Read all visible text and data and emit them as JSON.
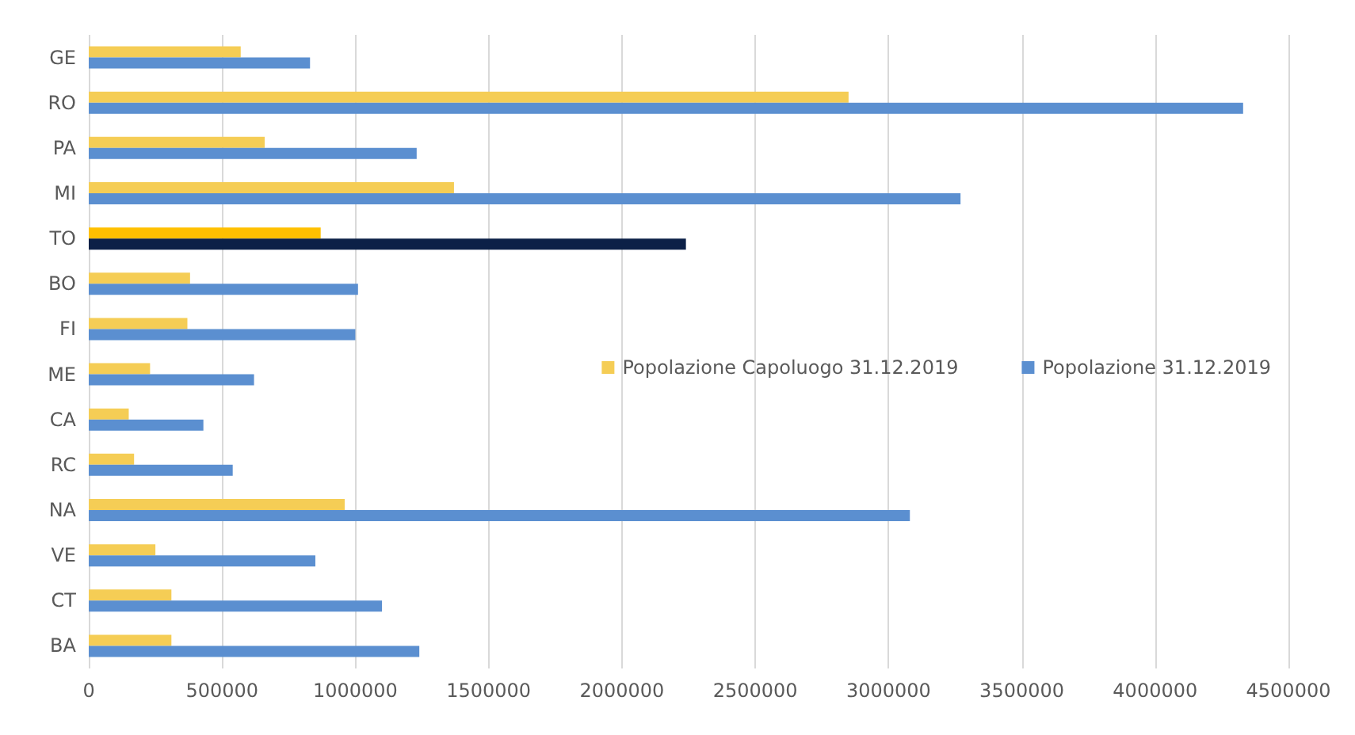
{
  "chart_data": {
    "type": "bar",
    "orientation": "horizontal",
    "categories": [
      "GE",
      "RO",
      "PA",
      "MI",
      "TO",
      "BO",
      "FI",
      "ME",
      "CA",
      "RC",
      "NA",
      "VE",
      "CT",
      "BA"
    ],
    "series": [
      {
        "name": "Popolazione Capoluogo 31.12.2019",
        "color": "#f5cd55",
        "colors": [
          "#f5cd55",
          "#f5cd55",
          "#f5cd55",
          "#f5cd55",
          "#ffc000",
          "#f5cd55",
          "#f5cd55",
          "#f5cd55",
          "#f5cd55",
          "#f5cd55",
          "#f5cd55",
          "#f5cd55",
          "#f5cd55",
          "#f5cd55"
        ],
        "values": [
          570000,
          2850000,
          660000,
          1370000,
          870000,
          380000,
          370000,
          230000,
          150000,
          170000,
          960000,
          250000,
          310000,
          310000
        ]
      },
      {
        "name": "Popolazione 31.12.2019",
        "color": "#5b8fd0",
        "colors": [
          "#5b8fd0",
          "#5b8fd0",
          "#5b8fd0",
          "#5b8fd0",
          "#0c2047",
          "#5b8fd0",
          "#5b8fd0",
          "#5b8fd0",
          "#5b8fd0",
          "#5b8fd0",
          "#5b8fd0",
          "#5b8fd0",
          "#5b8fd0",
          "#5b8fd0"
        ],
        "values": [
          830000,
          4330000,
          1230000,
          3270000,
          2240000,
          1010000,
          1000000,
          620000,
          430000,
          540000,
          3080000,
          850000,
          1100000,
          1240000
        ]
      }
    ],
    "xlim": [
      0,
      4500000
    ],
    "xticks": [
      0,
      500000,
      1000000,
      1500000,
      2000000,
      2500000,
      3000000,
      3500000,
      4000000,
      4500000
    ],
    "grid": "x",
    "legend": "right"
  }
}
